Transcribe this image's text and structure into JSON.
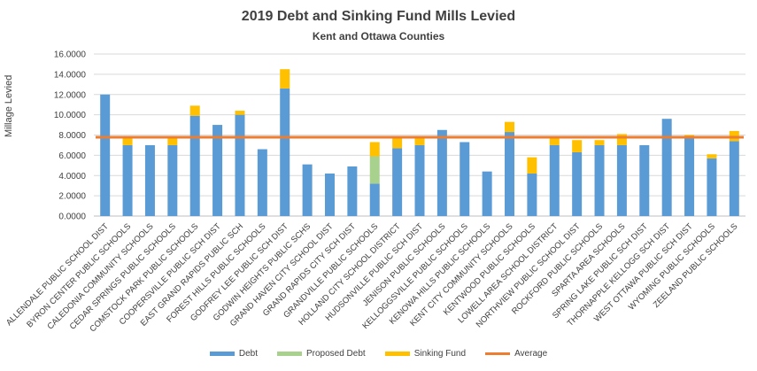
{
  "chart_data": {
    "type": "bar",
    "stacked": true,
    "title": "2019 Debt and Sinking Fund Mills Levied",
    "subtitle": "Kent and Ottawa Counties",
    "xlabel": "",
    "ylabel": "Millage Levied",
    "ylim": [
      0,
      16
    ],
    "yticks": [
      "0.0000",
      "2.0000",
      "4.0000",
      "6.0000",
      "8.0000",
      "10.0000",
      "12.0000",
      "14.0000",
      "16.0000"
    ],
    "grid": true,
    "legend_position": "bottom",
    "categories": [
      "ALLENDALE PUBLIC SCHOOL DIST",
      "BYRON CENTER PUBLIC SCHOOLS",
      "CALEDONIA COMMUNITY SCHOOLS",
      "CEDAR SPRINGS PUBLIC SCHOOLS",
      "COMSTOCK PARK PUBLIC SCHOOLS",
      "COOPERSVILLE PUBLIC SCH DIST",
      "EAST GRAND RAPIDS PUBLIC SCH",
      "FOREST HILLS PUBLIC SCHOOLS",
      "GODFREY LEE PUBLIC SCH DIST",
      "GODWIN HEIGHTS PUBLIC SCHS",
      "GRAND HAVEN CITY SCHOOL DIST",
      "GRAND RAPIDS CITY SCH DIST",
      "GRANDVILLE PUBLIC SCHOOLS",
      "HOLLAND CITY SCHOOL DISTRICT",
      "HUDSONVILLE PUBLIC SCH DIST",
      "JENISON PUBLIC SCHOOLS",
      "KELLOGGSVILLE PUBLIC SCHOOLS",
      "KENOWA HILLS PUBLIC SCHOOLS",
      "KENT CITY COMMUNITY SCHOOLS",
      "KENTWOOD PUBLIC SCHOOLS",
      "LOWELL AREA SCHOOL DISTRICT",
      "NORTHVIEW PUBLIC SCHOOL DIST",
      "ROCKFORD PUBLIC SCHOOLS",
      "SPARTA AREA SCHOOLS",
      "SPRING LAKE PUBLIC SCH DIST",
      "THORNAPPLE KELLOGG SCH DIST",
      "WEST OTTAWA PUBLIC SCH DIST",
      "WYOMING PUBLIC SCHOOLS",
      "ZEELAND PUBLIC SCHOOLS"
    ],
    "series": [
      {
        "name": "Debt",
        "color": "#5b9bd5",
        "values": [
          12.0,
          7.0,
          7.0,
          7.0,
          9.9,
          9.0,
          10.0,
          6.6,
          12.6,
          5.1,
          4.2,
          4.9,
          3.2,
          6.7,
          7.0,
          8.5,
          7.3,
          4.4,
          8.3,
          4.2,
          7.0,
          6.3,
          7.0,
          7.0,
          7.0,
          9.6,
          7.8,
          5.7,
          7.4
        ]
      },
      {
        "name": "Proposed Debt",
        "color": "#a9d18e",
        "values": [
          0,
          0,
          0,
          0,
          0,
          0,
          0,
          0,
          0,
          0,
          0,
          0,
          2.7,
          0,
          0,
          0,
          0,
          0,
          0,
          0,
          0,
          0,
          0,
          0,
          0,
          0,
          0,
          0,
          0
        ]
      },
      {
        "name": "Sinking Fund",
        "color": "#ffc000",
        "values": [
          0,
          0.9,
          0,
          0.9,
          1.0,
          0,
          0.4,
          0,
          1.9,
          0,
          0,
          0,
          1.4,
          1.1,
          0.9,
          0,
          0,
          0,
          1.0,
          1.6,
          0.8,
          1.2,
          0.5,
          1.1,
          0,
          0,
          0.2,
          0.4,
          1.0
        ]
      }
    ],
    "average": {
      "name": "Average",
      "color": "#ed7d31",
      "value": 7.78
    }
  }
}
